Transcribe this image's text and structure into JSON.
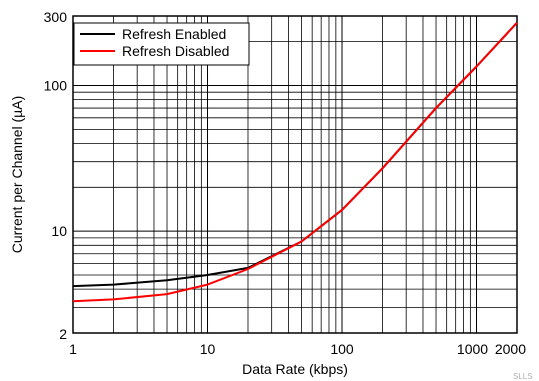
{
  "chart_data": {
    "type": "line",
    "title": "",
    "xlabel": "Data Rate (kbps)",
    "ylabel": "Current per Channel (µA)",
    "x_scale": "log",
    "y_scale": "log",
    "xlim": [
      1,
      2000
    ],
    "ylim": [
      2,
      300
    ],
    "grid": true,
    "legend_position": "top-left",
    "x_ticks": [
      {
        "value": 1,
        "label": "1"
      },
      {
        "value": 10,
        "label": "10"
      },
      {
        "value": 100,
        "label": "100"
      },
      {
        "value": 1000,
        "label": "1000"
      },
      {
        "value": 2000,
        "label": "2000"
      }
    ],
    "y_ticks": [
      {
        "value": 2,
        "label": "2"
      },
      {
        "value": 10,
        "label": "10"
      },
      {
        "value": 100,
        "label": "100"
      },
      {
        "value": 300,
        "label": "300"
      }
    ],
    "series": [
      {
        "name": "Refresh Enabled",
        "color": "#000000",
        "x": [
          1,
          2,
          5,
          10,
          20,
          50,
          100,
          200,
          500,
          1000,
          2000
        ],
        "y": [
          4.2,
          4.3,
          4.6,
          5.0,
          5.6,
          8.5,
          14,
          27,
          70,
          135,
          270
        ]
      },
      {
        "name": "Refresh Disabled",
        "color": "#ff0000",
        "x": [
          1,
          2,
          5,
          10,
          20,
          50,
          100,
          200,
          500,
          1000,
          2000
        ],
        "y": [
          3.3,
          3.4,
          3.7,
          4.3,
          5.5,
          8.5,
          14,
          27,
          70,
          135,
          270
        ]
      }
    ]
  },
  "watermark": "SLLS"
}
